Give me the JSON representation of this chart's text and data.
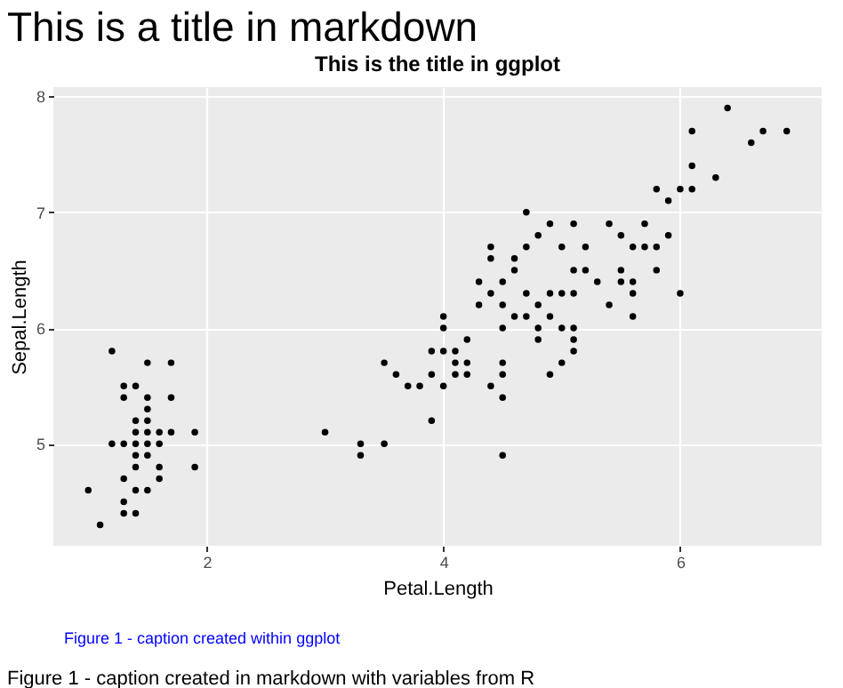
{
  "chart_data": {
    "type": "scatter",
    "title": "This is a title in markdown",
    "subtitle": "This is the title in ggplot",
    "xlabel": "Petal.Length",
    "ylabel": "Sepal.Length",
    "annotations": [
      "Figure 1  - caption created within ggplot",
      "Figure 1 - caption created in markdown with variables from R"
    ],
    "xlim": [
      0.705,
      7.195
    ],
    "xticks": [
      2,
      4,
      6
    ],
    "ylim": [
      4.12,
      8.08
    ],
    "yticks": [
      5,
      6,
      7,
      8
    ],
    "grid": true,
    "marker": "circle",
    "series": [
      {
        "color": "#000000",
        "x": [
          1.4,
          1.4,
          1.3,
          1.5,
          1.4,
          1.7,
          1.4,
          1.5,
          1.4,
          1.5,
          1.5,
          1.6,
          1.4,
          1.1,
          1.2,
          1.5,
          1.3,
          1.7,
          1.5,
          1.0,
          1.7,
          1.9,
          1.6,
          1.5,
          1.4,
          1.6,
          1.4,
          1.2,
          1.3,
          1.3,
          1.3,
          1.3,
          1.9,
          1.6,
          1.5,
          4.7,
          4.5,
          4.9,
          4.0,
          4.6,
          4.5,
          4.7,
          3.3,
          4.6,
          3.9,
          3.5,
          4.2,
          4.0,
          4.7,
          3.6,
          4.4,
          4.5,
          4.1,
          4.5,
          3.9,
          4.8,
          4.0,
          4.9,
          4.3,
          4.4,
          4.8,
          5.0,
          4.5,
          3.5,
          3.8,
          3.7,
          3.9,
          5.1,
          4.5,
          4.7,
          4.4,
          4.1,
          4.4,
          4.6,
          4.0,
          3.3,
          4.2,
          4.2,
          4.3,
          3.0,
          4.1,
          6.0,
          5.1,
          5.9,
          5.6,
          5.8,
          6.6,
          4.5,
          6.3,
          5.8,
          6.1,
          5.1,
          5.3,
          5.5,
          5.0,
          5.5,
          6.7,
          6.9,
          5.0,
          5.7,
          4.9,
          5.7,
          6.0,
          4.8,
          4.9,
          5.6,
          5.8,
          6.1,
          6.4,
          5.6,
          6.1,
          5.5,
          4.8,
          5.4,
          5.6,
          5.1,
          5.9,
          5.2,
          5.0,
          5.2,
          5.4,
          5.1,
          5.1
        ],
        "values": [
          5.1,
          4.9,
          4.7,
          4.6,
          5.0,
          5.4,
          4.6,
          5.0,
          4.4,
          4.9,
          5.4,
          4.8,
          4.8,
          4.3,
          5.8,
          5.7,
          5.4,
          5.7,
          5.1,
          4.6,
          5.1,
          4.8,
          5.0,
          5.2,
          5.2,
          4.7,
          5.5,
          5.0,
          5.5,
          4.4,
          5.0,
          4.5,
          5.1,
          5.1,
          5.3,
          7.0,
          6.4,
          6.9,
          5.5,
          6.5,
          5.7,
          6.3,
          4.9,
          6.6,
          5.2,
          5.0,
          5.9,
          6.0,
          6.1,
          5.6,
          6.7,
          5.6,
          5.8,
          6.2,
          5.6,
          5.9,
          6.1,
          6.3,
          6.4,
          6.6,
          6.8,
          6.7,
          6.0,
          5.7,
          5.5,
          5.5,
          5.8,
          6.0,
          5.4,
          6.7,
          6.3,
          5.6,
          5.5,
          6.1,
          5.8,
          5.0,
          5.6,
          5.7,
          6.2,
          5.1,
          5.7,
          6.3,
          5.8,
          7.1,
          6.3,
          6.5,
          7.6,
          4.9,
          7.3,
          6.7,
          7.2,
          6.5,
          6.4,
          6.8,
          5.7,
          6.5,
          7.7,
          7.7,
          6.0,
          6.9,
          5.6,
          6.7,
          7.2,
          6.2,
          6.1,
          6.4,
          7.2,
          7.4,
          7.9,
          6.1,
          7.7,
          6.4,
          6.0,
          6.9,
          6.7,
          6.9,
          6.8,
          6.7,
          6.3,
          6.5,
          6.2,
          5.9,
          6.3
        ]
      }
    ]
  }
}
